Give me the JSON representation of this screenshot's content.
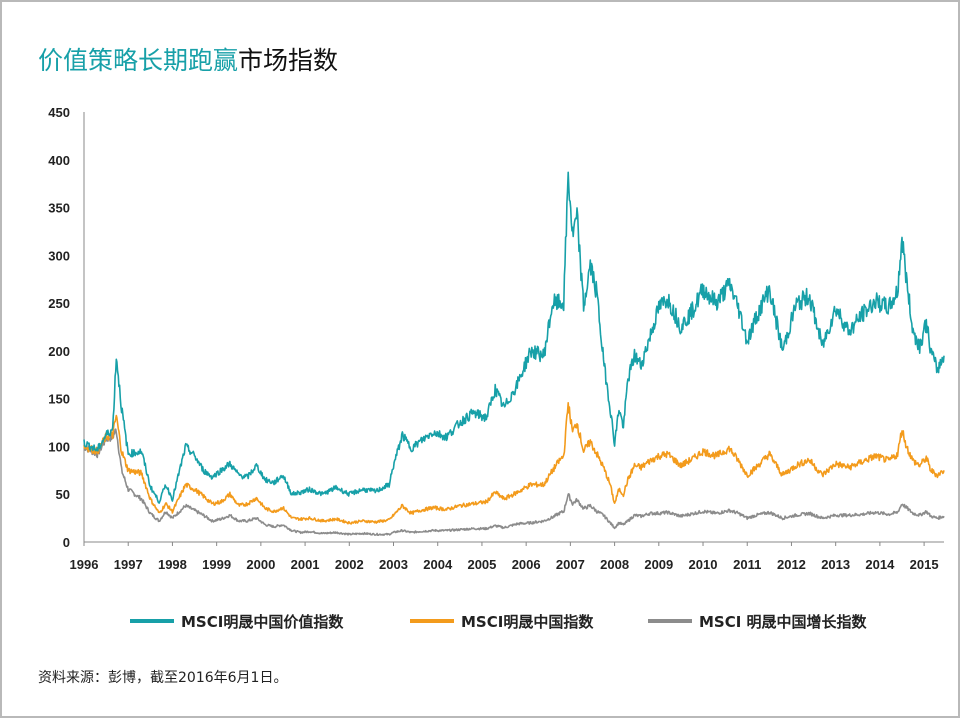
{
  "title": {
    "accent": "价值策略长期跑赢",
    "rest": "市场指数"
  },
  "source": "资料来源：彭博，截至2016年6月1日。",
  "chart_data": {
    "type": "line",
    "xlim": [
      1996.0,
      2015.45
    ],
    "ylim": [
      0,
      450
    ],
    "yticks": [
      0,
      50,
      100,
      150,
      200,
      250,
      300,
      350,
      400,
      450
    ],
    "xticks": [
      "1996",
      "1997",
      "1998",
      "1999",
      "2000",
      "2001",
      "2002",
      "2003",
      "2004",
      "2005",
      "2006",
      "2007",
      "2008",
      "2009",
      "2010",
      "2011",
      "2012",
      "2013",
      "2014",
      "2015"
    ],
    "grid": false,
    "legend_position": "bottom",
    "series": [
      {
        "name": "MSCI明晟中国价值指数",
        "color": "#17a0a8",
        "x": [
          1996.0,
          1996.3,
          1996.5,
          1996.65,
          1996.73,
          1996.85,
          1997.0,
          1997.3,
          1997.5,
          1997.7,
          1997.85,
          1998.0,
          1998.3,
          1998.5,
          1998.7,
          1998.9,
          1999.1,
          1999.3,
          1999.5,
          1999.7,
          1999.9,
          2000.1,
          2000.3,
          2000.5,
          2000.7,
          2000.9,
          2001.1,
          2001.4,
          2001.7,
          2002.0,
          2002.3,
          2002.6,
          2002.9,
          2003.0,
          2003.2,
          2003.4,
          2003.6,
          2003.9,
          2004.2,
          2004.5,
          2004.8,
          2005.1,
          2005.3,
          2005.5,
          2005.8,
          2006.1,
          2006.4,
          2006.6,
          2006.75,
          2006.85,
          2006.95,
          2007.05,
          2007.15,
          2007.3,
          2007.45,
          2007.6,
          2007.75,
          2007.9,
          2008.0,
          2008.1,
          2008.2,
          2008.3,
          2008.45,
          2008.6,
          2008.8,
          2009.0,
          2009.2,
          2009.5,
          2009.8,
          2010.0,
          2010.3,
          2010.6,
          2010.8,
          2011.0,
          2011.2,
          2011.5,
          2011.8,
          2012.1,
          2012.4,
          2012.7,
          2013.0,
          2013.3,
          2013.6,
          2013.9,
          2014.2,
          2014.4,
          2014.5,
          2014.6,
          2014.75,
          2014.9,
          2015.05,
          2015.15,
          2015.3,
          2015.45
        ],
        "y": [
          104,
          96,
          112,
          118,
          195,
          140,
          92,
          95,
          58,
          42,
          60,
          45,
          100,
          90,
          75,
          68,
          75,
          82,
          70,
          68,
          80,
          65,
          62,
          70,
          50,
          52,
          55,
          50,
          57,
          50,
          55,
          53,
          60,
          80,
          112,
          98,
          105,
          115,
          110,
          125,
          135,
          130,
          160,
          140,
          165,
          200,
          195,
          250,
          250,
          250,
          385,
          320,
          340,
          245,
          290,
          260,
          190,
          140,
          103,
          140,
          120,
          170,
          195,
          185,
          215,
          245,
          255,
          225,
          245,
          265,
          250,
          270,
          245,
          210,
          235,
          265,
          200,
          248,
          258,
          205,
          245,
          220,
          238,
          252,
          245,
          262,
          318,
          275,
          220,
          205,
          230,
          200,
          180,
          195
        ]
      },
      {
        "name": "MSCI明晟中国指数",
        "color": "#f39b1c",
        "x": [
          1996.0,
          1996.3,
          1996.5,
          1996.65,
          1996.73,
          1996.85,
          1997.0,
          1997.3,
          1997.5,
          1997.7,
          1997.85,
          1998.0,
          1998.3,
          1998.5,
          1998.7,
          1998.9,
          1999.1,
          1999.3,
          1999.5,
          1999.7,
          1999.9,
          2000.1,
          2000.3,
          2000.5,
          2000.7,
          2000.9,
          2001.1,
          2001.4,
          2001.7,
          2002.0,
          2002.3,
          2002.6,
          2002.9,
          2003.0,
          2003.2,
          2003.4,
          2003.6,
          2003.9,
          2004.2,
          2004.5,
          2004.8,
          2005.1,
          2005.3,
          2005.5,
          2005.8,
          2006.1,
          2006.4,
          2006.6,
          2006.75,
          2006.85,
          2006.95,
          2007.05,
          2007.15,
          2007.3,
          2007.45,
          2007.6,
          2007.75,
          2007.9,
          2008.0,
          2008.1,
          2008.2,
          2008.3,
          2008.45,
          2008.6,
          2008.8,
          2009.0,
          2009.2,
          2009.5,
          2009.8,
          2010.0,
          2010.3,
          2010.6,
          2010.8,
          2011.0,
          2011.2,
          2011.5,
          2011.8,
          2012.1,
          2012.4,
          2012.7,
          2013.0,
          2013.3,
          2013.6,
          2013.9,
          2014.2,
          2014.4,
          2014.5,
          2014.6,
          2014.75,
          2014.9,
          2015.05,
          2015.15,
          2015.3,
          2015.45
        ],
        "y": [
          100,
          95,
          110,
          112,
          132,
          95,
          75,
          72,
          45,
          30,
          40,
          32,
          60,
          55,
          48,
          40,
          42,
          50,
          38,
          40,
          46,
          35,
          32,
          36,
          25,
          24,
          25,
          22,
          24,
          20,
          22,
          21,
          23,
          28,
          38,
          30,
          33,
          36,
          34,
          38,
          40,
          42,
          52,
          45,
          52,
          60,
          60,
          75,
          85,
          90,
          145,
          115,
          125,
          95,
          105,
          92,
          78,
          60,
          40,
          55,
          50,
          65,
          80,
          78,
          85,
          90,
          92,
          80,
          88,
          95,
          90,
          98,
          85,
          70,
          78,
          92,
          70,
          80,
          86,
          70,
          82,
          78,
          84,
          90,
          85,
          92,
          118,
          100,
          85,
          80,
          88,
          75,
          70,
          75
        ]
      },
      {
        "name": "MSCI 明晟中国增长指数",
        "color": "#8c8c8c",
        "x": [
          1996.0,
          1996.3,
          1996.5,
          1996.65,
          1996.73,
          1996.85,
          1997.0,
          1997.3,
          1997.5,
          1997.7,
          1997.85,
          1998.0,
          1998.3,
          1998.5,
          1998.7,
          1998.9,
          1999.1,
          1999.3,
          1999.5,
          1999.7,
          1999.9,
          2000.1,
          2000.3,
          2000.5,
          2000.7,
          2000.9,
          2001.1,
          2001.4,
          2001.7,
          2002.0,
          2002.3,
          2002.6,
          2002.9,
          2003.0,
          2003.2,
          2003.4,
          2003.6,
          2003.9,
          2004.2,
          2004.5,
          2004.8,
          2005.1,
          2005.3,
          2005.5,
          2005.8,
          2006.1,
          2006.4,
          2006.6,
          2006.75,
          2006.85,
          2006.95,
          2007.05,
          2007.15,
          2007.3,
          2007.45,
          2007.6,
          2007.75,
          2007.9,
          2008.0,
          2008.1,
          2008.2,
          2008.3,
          2008.45,
          2008.6,
          2008.8,
          2009.0,
          2009.2,
          2009.5,
          2009.8,
          2010.0,
          2010.3,
          2010.6,
          2010.8,
          2011.0,
          2011.2,
          2011.5,
          2011.8,
          2012.1,
          2012.4,
          2012.7,
          2013.0,
          2013.3,
          2013.6,
          2013.9,
          2014.2,
          2014.4,
          2014.5,
          2014.6,
          2014.75,
          2014.9,
          2015.05,
          2015.15,
          2015.3,
          2015.45
        ],
        "y": [
          100,
          92,
          108,
          110,
          118,
          75,
          55,
          45,
          30,
          22,
          32,
          25,
          38,
          33,
          28,
          22,
          24,
          28,
          22,
          22,
          25,
          18,
          16,
          18,
          12,
          10,
          11,
          9,
          10,
          8,
          9,
          8,
          8,
          10,
          12,
          10,
          11,
          12,
          12,
          13,
          14,
          14,
          17,
          15,
          19,
          20,
          22,
          26,
          30,
          32,
          50,
          40,
          44,
          35,
          38,
          32,
          28,
          20,
          15,
          20,
          18,
          22,
          28,
          27,
          30,
          30,
          31,
          27,
          30,
          32,
          30,
          33,
          30,
          25,
          28,
          31,
          25,
          28,
          30,
          25,
          28,
          28,
          29,
          31,
          29,
          31,
          40,
          36,
          30,
          28,
          32,
          27,
          25,
          27
        ]
      }
    ]
  }
}
